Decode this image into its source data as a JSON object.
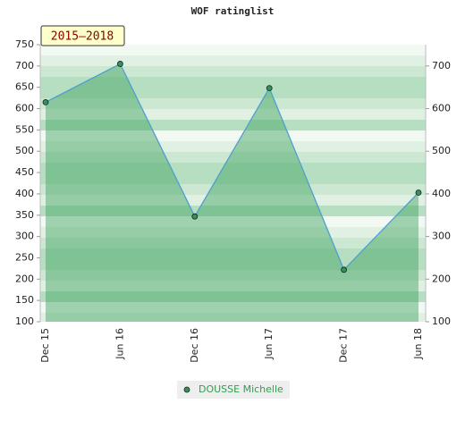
{
  "chart_data": {
    "type": "line",
    "title": "WOF ratinglist",
    "badge": "2015–2018",
    "categories": [
      "Dec 15",
      "Jun 16",
      "Dec 16",
      "Jun 17",
      "Dec 17",
      "Jun 18"
    ],
    "series": [
      {
        "name": "DOUSSE Michelle",
        "color": "#4f9fd0",
        "values": [
          615,
          705,
          347,
          648,
          222,
          403
        ]
      }
    ],
    "ylim": [
      100,
      750
    ],
    "yticks": [
      100,
      150,
      200,
      250,
      300,
      350,
      400,
      450,
      500,
      550,
      600,
      650,
      700,
      750
    ],
    "y2lim": [
      100,
      750
    ],
    "y2ticks": [
      100,
      200,
      300,
      400,
      500,
      600,
      700
    ]
  }
}
